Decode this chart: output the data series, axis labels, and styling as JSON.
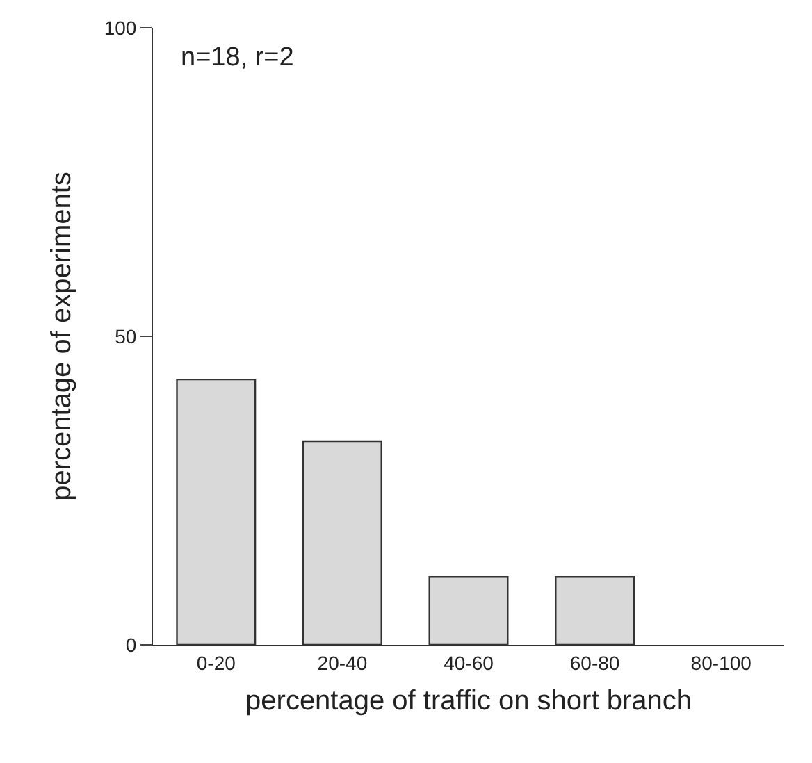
{
  "chart_data": {
    "type": "bar",
    "xlabel": "percentage of traffic on short branch",
    "ylabel": "percentage of experiments",
    "categories": [
      "0-20",
      "20-40",
      "40-60",
      "60-80",
      "80-100"
    ],
    "values": [
      43,
      33,
      11,
      11,
      0
    ],
    "color": "#d9d9d9",
    "ylim": [
      0,
      100
    ],
    "yticks": [
      0,
      50,
      100
    ],
    "grid": false,
    "annotations": [
      "n=18, r=2"
    ]
  }
}
